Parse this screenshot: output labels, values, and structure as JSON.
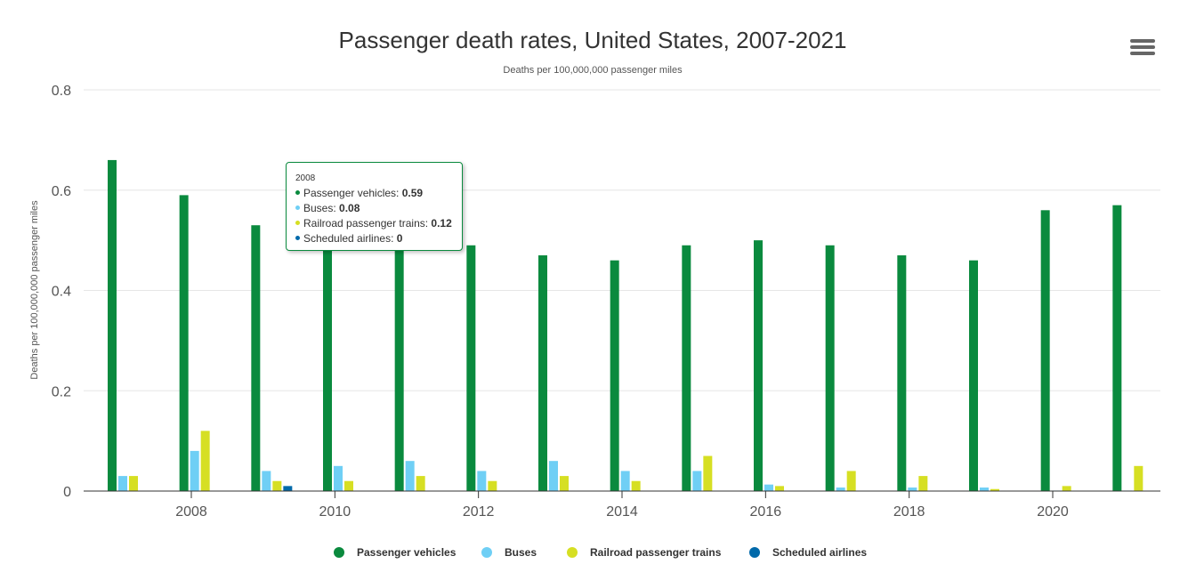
{
  "chart_data": {
    "type": "bar",
    "title": "Passenger death rates, United States, 2007-2021",
    "subtitle": "Deaths per 100,000,000 passenger miles",
    "xlabel": "",
    "ylabel": "Deaths per 100,000,000 passenger miles",
    "ylim": [
      0,
      0.8
    ],
    "yticks": [
      "0",
      "0.2",
      "0.4",
      "0.6",
      "0.8"
    ],
    "ytick_values": [
      0,
      0.2,
      0.4,
      0.6,
      0.8
    ],
    "categories": [
      2007,
      2008,
      2009,
      2010,
      2011,
      2012,
      2013,
      2014,
      2015,
      2016,
      2017,
      2018,
      2019,
      2020,
      2021
    ],
    "xticks": [
      "2008",
      "2010",
      "2012",
      "2014",
      "2016",
      "2018",
      "2020"
    ],
    "xtick_values": [
      2008,
      2010,
      2012,
      2014,
      2016,
      2018,
      2020
    ],
    "grid": true,
    "legend_position": "bottom",
    "series": [
      {
        "name": "Passenger vehicles",
        "color": "#0a8a3e",
        "values": [
          0.66,
          0.59,
          0.53,
          0.5,
          0.49,
          0.49,
          0.47,
          0.46,
          0.49,
          0.5,
          0.49,
          0.47,
          0.46,
          0.56,
          0.57
        ]
      },
      {
        "name": "Buses",
        "color": "#6fcff5",
        "values": [
          0.03,
          0.08,
          0.04,
          0.05,
          0.06,
          0.04,
          0.06,
          0.04,
          0.04,
          0.013,
          0.007,
          0.007,
          0.007,
          0.001,
          0.001
        ]
      },
      {
        "name": "Railroad passenger trains",
        "color": "#d6df23",
        "values": [
          0.03,
          0.12,
          0.02,
          0.02,
          0.03,
          0.02,
          0.03,
          0.02,
          0.07,
          0.01,
          0.04,
          0.03,
          0.004,
          0.01,
          0.05
        ]
      },
      {
        "name": "Scheduled airlines",
        "color": "#0069aa",
        "values": [
          0,
          0,
          0.01,
          0,
          0,
          0,
          0,
          0,
          0,
          0,
          0,
          0,
          0,
          0,
          0
        ]
      }
    ],
    "tooltip": {
      "category": "2008",
      "rows": [
        {
          "label": "Passenger vehicles: ",
          "value": "0.59",
          "color": "#0a8a3e"
        },
        {
          "label": "Buses: ",
          "value": "0.08",
          "color": "#6fcff5"
        },
        {
          "label": "Railroad passenger trains: ",
          "value": "0.12",
          "color": "#d6df23"
        },
        {
          "label": "Scheduled airlines: ",
          "value": "0",
          "color": "#0069aa"
        }
      ]
    }
  },
  "menu": {
    "icon": "hamburger-menu-icon"
  }
}
